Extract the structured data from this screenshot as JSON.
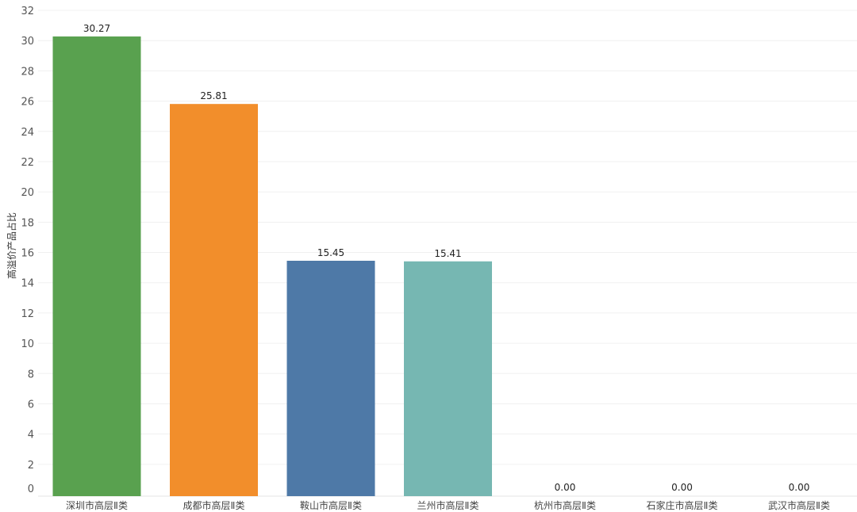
{
  "chart_data": {
    "type": "bar",
    "title": "",
    "xlabel": "",
    "ylabel": "高溢价产品占比",
    "ylim": [
      0,
      32
    ],
    "yticks": [
      0,
      2,
      4,
      6,
      8,
      10,
      12,
      14,
      16,
      18,
      20,
      22,
      24,
      26,
      28,
      30,
      32
    ],
    "grid": true,
    "categories": [
      "深圳市高层Ⅱ类",
      "成都市高层Ⅱ类",
      "鞍山市高层Ⅱ类",
      "兰州市高层Ⅱ类",
      "杭州市高层Ⅱ类",
      "石家庄市高层Ⅱ类",
      "武汉市高层Ⅱ类"
    ],
    "values": [
      30.27,
      25.81,
      15.45,
      15.41,
      0.0,
      0.0,
      0.0
    ],
    "value_labels": [
      "30.27",
      "25.81",
      "15.45",
      "15.41",
      "0.00",
      "0.00",
      "0.00"
    ],
    "colors": [
      "#59a14f",
      "#f28e2b",
      "#4e79a7",
      "#76b7b2",
      "#af7aa1",
      "#e15759",
      "#edc948"
    ]
  }
}
